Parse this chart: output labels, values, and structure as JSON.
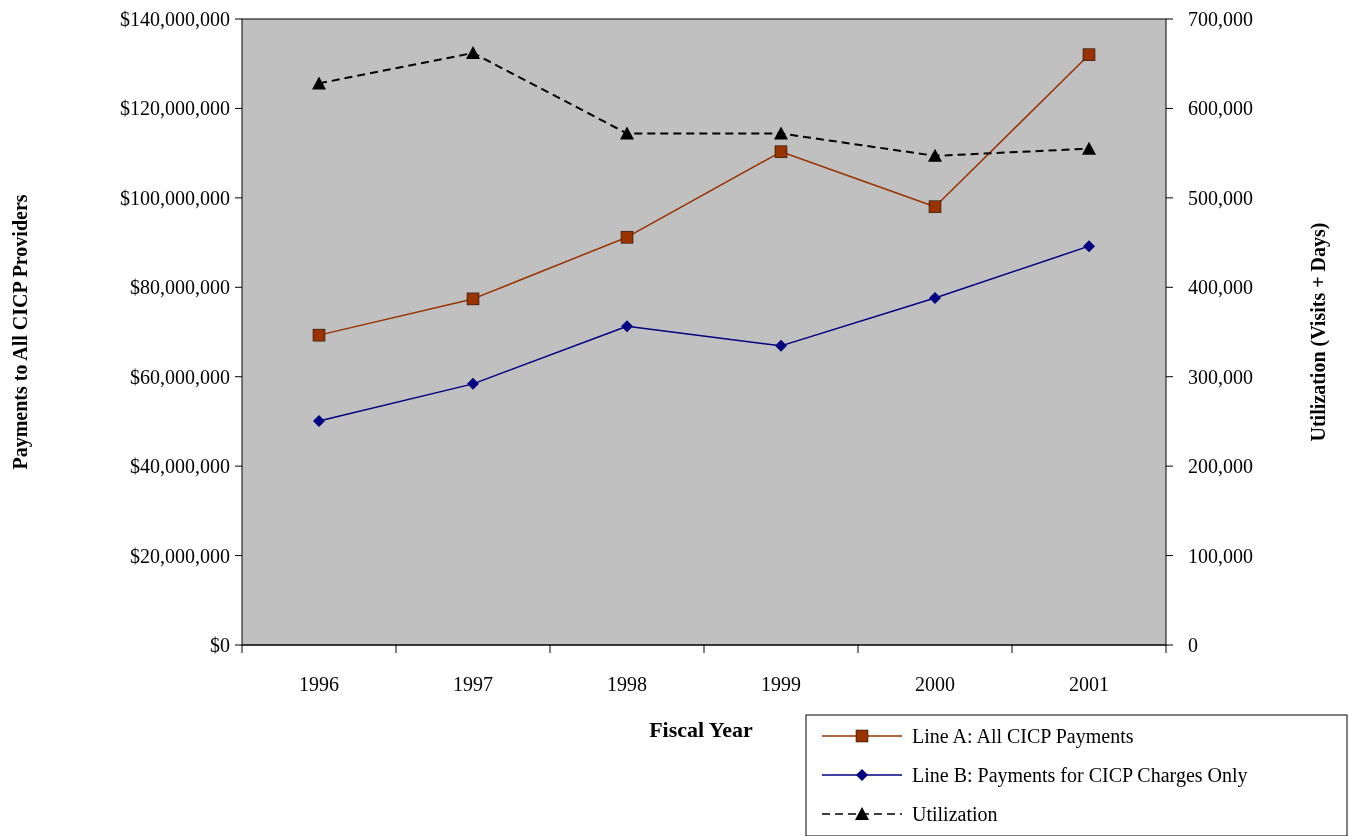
{
  "chart_data": {
    "type": "line",
    "xlabel": "Fiscal Year",
    "ylabel": "Payments to All CICP Providers",
    "y2label": "Utilization (Visits + Days)",
    "categories": [
      "1996",
      "1997",
      "1998",
      "1999",
      "2000",
      "2001"
    ],
    "series": [
      {
        "name": "Line A:  All CICP Payments",
        "color": "#993300",
        "values": [
          69300000,
          77400000,
          91200000,
          110300000,
          98000000,
          132000000
        ],
        "marker": "square",
        "line_style": "solid"
      },
      {
        "name": "Line B:  Payments for CICP Charges Only",
        "color": "#000080",
        "values": [
          50100000,
          58400000,
          71300000,
          66900000,
          77600000,
          89200000
        ],
        "marker": "diamond",
        "line_style": "solid"
      },
      {
        "name": "Utilization",
        "color": "#000000",
        "values": [
          628000,
          662000,
          572000,
          572000,
          547000,
          555000
        ],
        "marker": "triangle",
        "line_style": "dashed",
        "axis": "y2"
      }
    ],
    "ylim": [
      0,
      140000000
    ],
    "yticks": [
      {
        "value": 0,
        "label": "$0"
      },
      {
        "value": 20000000,
        "label": "$20,000,000"
      },
      {
        "value": 40000000,
        "label": "$40,000,000"
      },
      {
        "value": 60000000,
        "label": "$60,000,000"
      },
      {
        "value": 80000000,
        "label": "$80,000,000"
      },
      {
        "value": 100000000,
        "label": "$100,000,000"
      },
      {
        "value": 120000000,
        "label": "$120,000,000"
      },
      {
        "value": 140000000,
        "label": "$140,000,000"
      }
    ],
    "y2lim": [
      0,
      700000
    ],
    "y2ticks": [
      0,
      {
        "value": 100000,
        "label": "100,000"
      },
      {
        "value": 200000,
        "label": "200,000"
      },
      {
        "value": 300000,
        "label": "300,000"
      },
      {
        "value": 400000,
        "label": "400,000"
      },
      {
        "value": 500000,
        "label": "500,000"
      },
      {
        "value": 600000,
        "label": "600,000"
      },
      {
        "value": 700000,
        "label": "700,000"
      }
    ],
    "grid": false,
    "legend": "bottom right"
  }
}
